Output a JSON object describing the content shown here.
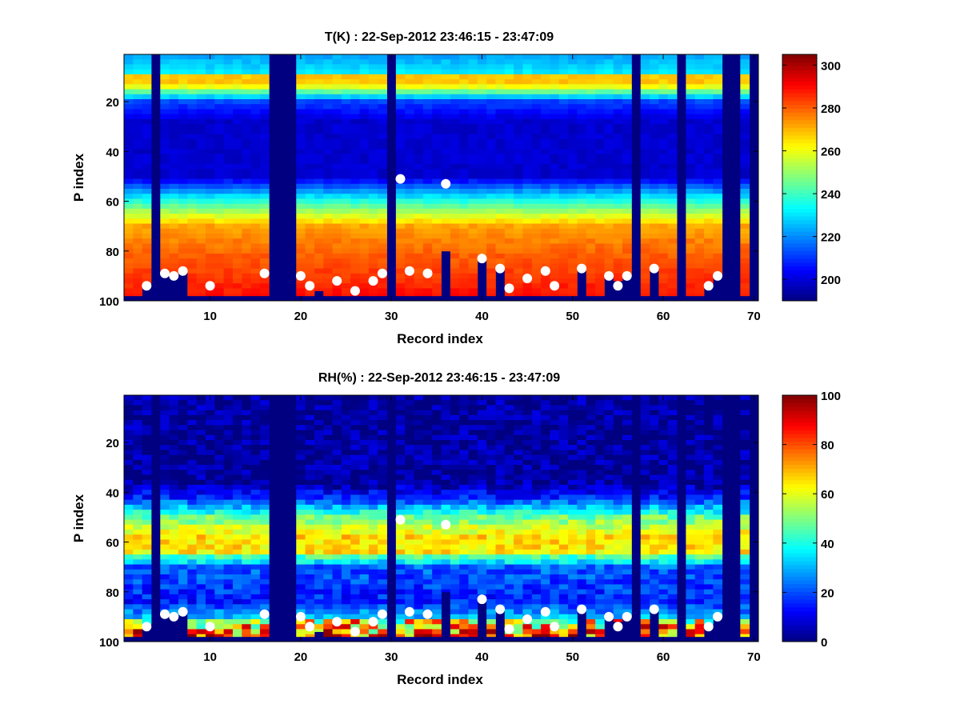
{
  "chart_data": [
    {
      "type": "heatmap",
      "title": "T(K) : 22-Sep-2012 23:46:15 - 23:47:09",
      "xlabel": "Record index",
      "ylabel": "P index",
      "xlim": [
        0.5,
        70.5
      ],
      "ylim": [
        1,
        100
      ],
      "y_reversed": true,
      "xticks": [
        10,
        20,
        30,
        40,
        50,
        60,
        70
      ],
      "yticks": [
        20,
        40,
        60,
        80,
        100
      ],
      "colormap": "jet",
      "colorbar": {
        "ticks": [
          200,
          220,
          240,
          260,
          280,
          300
        ],
        "range": [
          190,
          305
        ]
      },
      "missing_records": [
        4,
        17,
        18,
        19,
        30,
        57,
        62,
        67,
        68,
        70
      ],
      "truncated_profiles": [
        {
          "record": 3,
          "bottom_p": 93
        },
        {
          "record": 5,
          "bottom_p": 89
        },
        {
          "record": 6,
          "bottom_p": 90
        },
        {
          "record": 7,
          "bottom_p": 88
        },
        {
          "record": 22,
          "bottom_p": 96
        },
        {
          "record": 36,
          "bottom_p": 80
        },
        {
          "record": 40,
          "bottom_p": 83
        },
        {
          "record": 42,
          "bottom_p": 87
        },
        {
          "record": 51,
          "bottom_p": 87
        },
        {
          "record": 54,
          "bottom_p": 90
        },
        {
          "record": 55,
          "bottom_p": 92
        },
        {
          "record": 56,
          "bottom_p": 90
        },
        {
          "record": 59,
          "bottom_p": 87
        },
        {
          "record": 65,
          "bottom_p": 93
        },
        {
          "record": 66,
          "bottom_p": 90
        }
      ],
      "points": {
        "x": [
          3,
          5,
          6,
          7,
          10,
          16,
          20,
          21,
          24,
          26,
          28,
          29,
          31,
          32,
          34,
          36,
          40,
          42,
          43,
          45,
          47,
          48,
          51,
          54,
          55,
          56,
          59,
          65,
          66
        ],
        "y": [
          94,
          89,
          90,
          88,
          94,
          89,
          90,
          94,
          92,
          96,
          92,
          89,
          51,
          88,
          89,
          53,
          83,
          87,
          95,
          91,
          88,
          94,
          87,
          90,
          94,
          90,
          87,
          94,
          90
        ],
        "color": "#ffffff"
      }
    },
    {
      "type": "heatmap",
      "title": "RH(%) : 22-Sep-2012 23:46:15 - 23:47:09",
      "xlabel": "Record index",
      "ylabel": "P index",
      "xlim": [
        0.5,
        70.5
      ],
      "ylim": [
        1,
        100
      ],
      "y_reversed": true,
      "xticks": [
        10,
        20,
        30,
        40,
        50,
        60,
        70
      ],
      "yticks": [
        20,
        40,
        60,
        80,
        100
      ],
      "colormap": "jet",
      "colorbar": {
        "ticks": [
          0,
          20,
          40,
          60,
          80,
          100
        ],
        "range": [
          0,
          100
        ]
      },
      "missing_records": [
        4,
        17,
        18,
        19,
        30,
        57,
        62,
        67,
        68,
        70
      ],
      "truncated_profiles": [
        {
          "record": 3,
          "bottom_p": 93
        },
        {
          "record": 5,
          "bottom_p": 89
        },
        {
          "record": 6,
          "bottom_p": 90
        },
        {
          "record": 7,
          "bottom_p": 88
        },
        {
          "record": 22,
          "bottom_p": 96
        },
        {
          "record": 36,
          "bottom_p": 80
        },
        {
          "record": 40,
          "bottom_p": 83
        },
        {
          "record": 42,
          "bottom_p": 87
        },
        {
          "record": 51,
          "bottom_p": 87
        },
        {
          "record": 54,
          "bottom_p": 90
        },
        {
          "record": 55,
          "bottom_p": 92
        },
        {
          "record": 56,
          "bottom_p": 90
        },
        {
          "record": 59,
          "bottom_p": 87
        },
        {
          "record": 65,
          "bottom_p": 93
        },
        {
          "record": 66,
          "bottom_p": 90
        }
      ],
      "points": {
        "x": [
          3,
          5,
          6,
          7,
          10,
          16,
          20,
          21,
          24,
          26,
          28,
          29,
          31,
          32,
          34,
          36,
          40,
          42,
          43,
          45,
          47,
          48,
          51,
          54,
          55,
          56,
          59,
          65,
          66
        ],
        "y": [
          94,
          89,
          90,
          88,
          94,
          89,
          90,
          94,
          92,
          96,
          92,
          89,
          51,
          88,
          89,
          53,
          83,
          87,
          95,
          91,
          88,
          94,
          87,
          90,
          94,
          90,
          87,
          94,
          90
        ],
        "color": "#ffffff"
      }
    }
  ]
}
